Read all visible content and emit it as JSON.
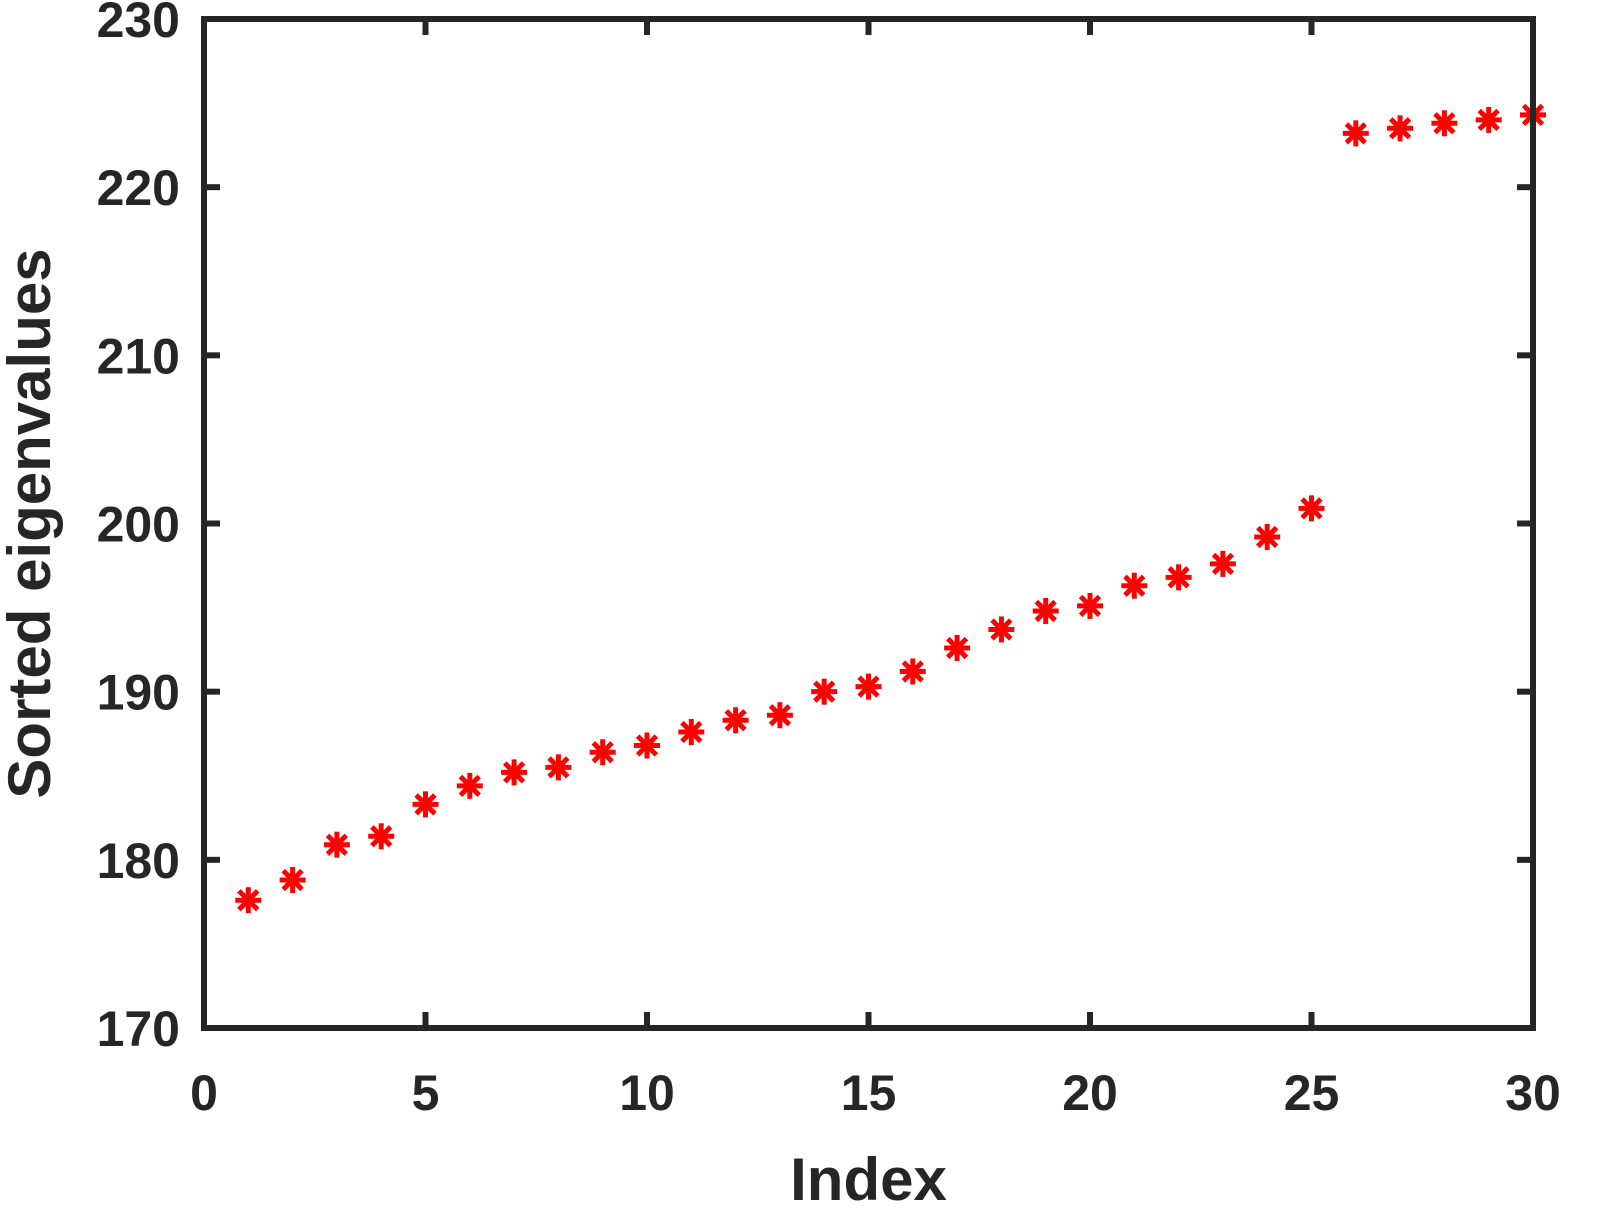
{
  "chart_data": {
    "type": "scatter",
    "title": "",
    "xlabel": "Index",
    "ylabel": "Sorted eigenvalues",
    "xlim": [
      0,
      30
    ],
    "ylim": [
      170,
      230
    ],
    "xticks": [
      0,
      5,
      10,
      15,
      20,
      25,
      30
    ],
    "yticks": [
      170,
      180,
      190,
      200,
      210,
      220,
      230
    ],
    "xtick_labels": [
      "0",
      "5",
      "10",
      "15",
      "20",
      "25",
      "30"
    ],
    "ytick_labels": [
      "170",
      "180",
      "190",
      "200",
      "210",
      "220",
      "230"
    ],
    "grid": false,
    "legend": "none",
    "marker": "asterisk",
    "marker_color": "#ff0000",
    "axis_color": "#262626",
    "series": [
      {
        "x": [
          1,
          2,
          3,
          4,
          5,
          6,
          7,
          8,
          9,
          10,
          11,
          12,
          13,
          14,
          15,
          16,
          17,
          18,
          19,
          20,
          21,
          22,
          23,
          24,
          25,
          26,
          27,
          28,
          29,
          30
        ],
        "values": [
          177.6,
          178.8,
          180.9,
          181.4,
          183.3,
          184.4,
          185.2,
          185.5,
          186.4,
          186.8,
          187.6,
          188.3,
          188.6,
          190.0,
          190.3,
          191.2,
          192.6,
          193.7,
          194.8,
          195.1,
          196.3,
          196.8,
          197.6,
          199.2,
          200.9,
          223.2,
          223.5,
          223.8,
          224.0,
          224.3
        ]
      }
    ]
  }
}
